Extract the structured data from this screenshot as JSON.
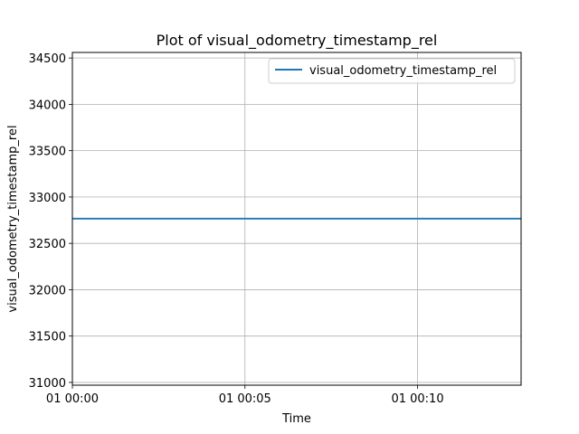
{
  "chart_data": {
    "type": "line",
    "title": "Plot of visual_odometry_timestamp_rel",
    "xlabel": "Time",
    "ylabel": "visual_odometry_timestamp_rel",
    "x_range": [
      "01 00:00",
      "01 00:13"
    ],
    "xlim": [
      0,
      13
    ],
    "ylim": [
      30970,
      34560
    ],
    "x_ticks": [
      {
        "value": 0,
        "label": "01 00:00"
      },
      {
        "value": 5,
        "label": "01 00:05"
      },
      {
        "value": 10,
        "label": "01 00:10"
      }
    ],
    "y_ticks": [
      {
        "value": 31000,
        "label": "31000"
      },
      {
        "value": 31500,
        "label": "31500"
      },
      {
        "value": 32000,
        "label": "32000"
      },
      {
        "value": 32500,
        "label": "32500"
      },
      {
        "value": 33000,
        "label": "33000"
      },
      {
        "value": 33500,
        "label": "33500"
      },
      {
        "value": 34000,
        "label": "34000"
      },
      {
        "value": 34500,
        "label": "34500"
      }
    ],
    "grid": true,
    "legend_position": "top-right",
    "series": [
      {
        "name": "visual_odometry_timestamp_rel",
        "color": "#1f77b4",
        "x": [
          0,
          13
        ],
        "y": [
          32767,
          32767
        ]
      }
    ]
  }
}
